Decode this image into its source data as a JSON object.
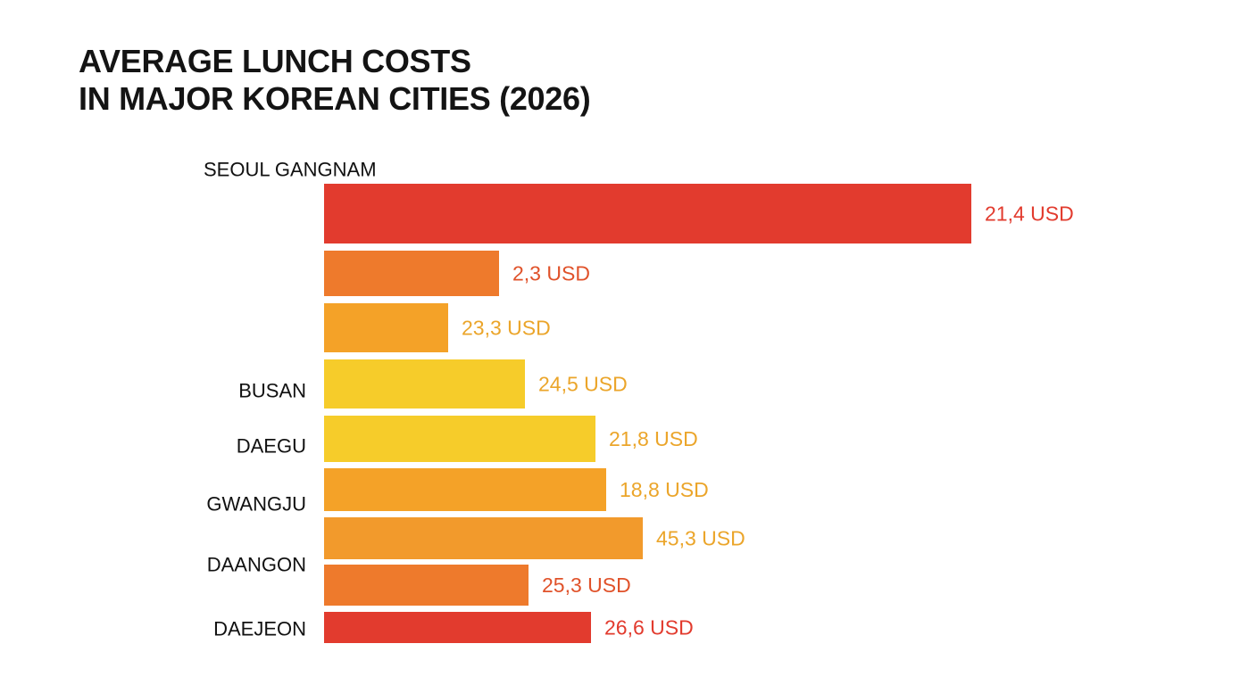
{
  "chart_data": {
    "type": "bar",
    "orientation": "horizontal",
    "title_lines": [
      "AVERAGE LUNCH COSTS",
      "IN MAJOR KOREAN CITIES (2026)"
    ],
    "categories": [
      "SEOUL GANGNAM",
      "",
      "",
      "BUSAN",
      "DAEGU",
      "GWANGJU",
      "DAANGON",
      "",
      "DAEJEON"
    ],
    "values": [
      21.4,
      2.3,
      23.3,
      24.5,
      21.8,
      18.8,
      45.3,
      25.3,
      26.6
    ],
    "value_labels": [
      "21,4 USD",
      "2,3 USD",
      "23,3 USD",
      "24,5 USD",
      "21,8 USD",
      "18,8 USD",
      "45,3 USD",
      "25,3 USD",
      "26,6 USD"
    ],
    "bar_colors": [
      "#e23b2e",
      "#ee7a2c",
      "#f4a228",
      "#f6cc2a",
      "#f6cc2a",
      "#f4a228",
      "#f29a2c",
      "#ee7a2c",
      "#e23b2e"
    ],
    "label_colors": [
      "#e23b2e",
      "#e0522a",
      "#eba52a",
      "#eba52a",
      "#eba52a",
      "#eba52a",
      "#eba52a",
      "#e0522a",
      "#e23b2e"
    ],
    "xlabel": "",
    "ylabel": "",
    "grid": false,
    "legend": "none"
  }
}
